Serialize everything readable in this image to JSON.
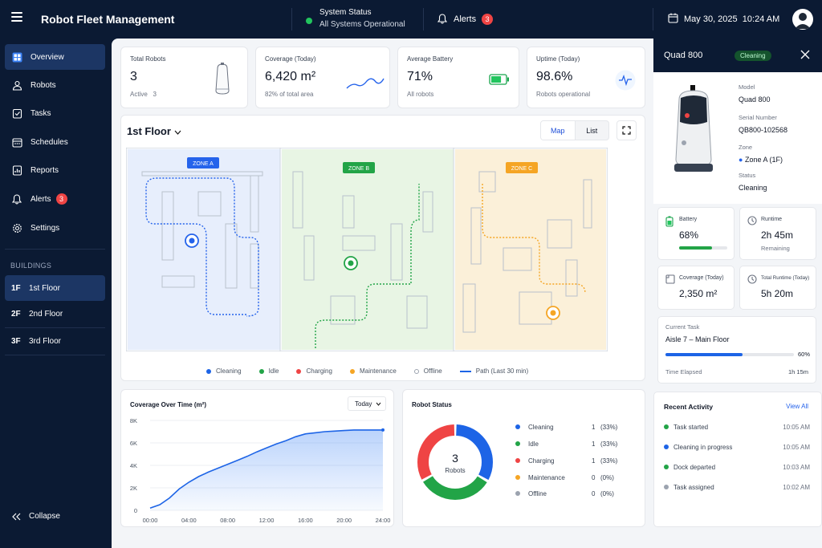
{
  "app": {
    "title": "Robot Fleet Management"
  },
  "header": {
    "system_status_label": "System Status",
    "system_status_value": "All Systems Operational",
    "alerts_label": "Alerts",
    "alerts_count": "3",
    "date": "May 30, 2025",
    "time": "10:24 AM"
  },
  "sidebar": {
    "items": [
      {
        "label": "Overview",
        "icon": "overview-icon"
      },
      {
        "label": "Robots",
        "icon": "robot-icon"
      },
      {
        "label": "Tasks",
        "icon": "tasks-icon"
      },
      {
        "label": "Schedules",
        "icon": "calendar-icon"
      },
      {
        "label": "Reports",
        "icon": "reports-icon"
      },
      {
        "label": "Alerts",
        "icon": "bell-icon",
        "badge": "3"
      },
      {
        "label": "Settings",
        "icon": "gear-icon"
      }
    ],
    "buildings_label": "BUILDINGS",
    "floors": [
      {
        "code": "1F",
        "label": "1st Floor"
      },
      {
        "code": "2F",
        "label": "2nd Floor"
      },
      {
        "code": "3F",
        "label": "3rd Floor"
      }
    ],
    "collapse_label": "Collapse"
  },
  "stats": {
    "total_robots": {
      "title": "Total Robots",
      "value": "3",
      "sub": "Active   3"
    },
    "coverage": {
      "title": "Coverage (Today)",
      "value": "6,420 m²",
      "sub": "82% of total area"
    },
    "battery": {
      "title": "Average Battery",
      "value": "71%",
      "sub": "All robots",
      "level": 0.71
    },
    "uptime": {
      "title": "Uptime (Today)",
      "value": "98.6%",
      "sub": "Robots operational"
    }
  },
  "map": {
    "floor": "1st Floor",
    "view_map": "Map",
    "view_list": "List",
    "zones": [
      {
        "label": "ZONE A"
      },
      {
        "label": "ZONE B"
      },
      {
        "label": "ZONE C"
      }
    ],
    "legend": [
      {
        "label": "Cleaning",
        "color": "#1d64e6"
      },
      {
        "label": "Idle",
        "color": "#22a447"
      },
      {
        "label": "Charging",
        "color": "#ef4444"
      },
      {
        "label": "Maintenance",
        "color": "#f5a524"
      },
      {
        "label": "Offline",
        "color": "#9ca3af"
      },
      {
        "label": "Path (Last 30 min)",
        "color": "#1d64e6"
      }
    ]
  },
  "coverage_chart": {
    "title": "Coverage Over Time (m²)",
    "range": "Today"
  },
  "robot_status": {
    "title": "Robot Status",
    "total": "3",
    "total_label": "Robots",
    "rows": [
      {
        "name": "Cleaning",
        "count": "1",
        "pct": "(33%)",
        "color": "#1d64e6"
      },
      {
        "name": "Idle",
        "count": "1",
        "pct": "(33%)",
        "color": "#22a447"
      },
      {
        "name": "Charging",
        "count": "1",
        "pct": "(33%)",
        "color": "#ef4444"
      },
      {
        "name": "Maintenance",
        "count": "0",
        "pct": "(0%)",
        "color": "#f5a524"
      },
      {
        "name": "Offline",
        "count": "0",
        "pct": "(0%)",
        "color": "#9ca3af"
      }
    ]
  },
  "chart_data": {
    "type": "area",
    "x": [
      "00:00",
      "01:00",
      "02:00",
      "03:00",
      "04:00",
      "05:00",
      "06:00",
      "07:00",
      "08:00",
      "09:00",
      "10:00",
      "11:00",
      "12:00",
      "13:00",
      "14:00",
      "15:00",
      "16:00",
      "17:00",
      "18:00",
      "19:00",
      "20:00",
      "21:00",
      "22:00",
      "23:00",
      "24:00"
    ],
    "values": [
      200,
      500,
      1100,
      1900,
      2500,
      3000,
      3400,
      3750,
      4100,
      4450,
      4800,
      5200,
      5550,
      5900,
      6200,
      6550,
      6800,
      6900,
      7000,
      7050,
      7100,
      7150,
      7150,
      7150,
      7150
    ],
    "xticks": [
      "00:00",
      "04:00",
      "08:00",
      "12:00",
      "16:00",
      "20:00",
      "24:00"
    ],
    "yticks": [
      "0",
      "2K",
      "4K",
      "6K",
      "8K"
    ],
    "ylim": [
      0,
      8000
    ],
    "title": "Coverage Over Time (m²)",
    "grid": true,
    "color": "#1d64e6"
  },
  "robot_panel": {
    "name": "Quad 800",
    "status": "Cleaning",
    "model_label": "Model",
    "model": "Quad 800",
    "serial_label": "Serial Number",
    "serial": "QB800-102568",
    "zone_label": "Zone",
    "zone": "Zone A (1F)",
    "status_label": "Status",
    "status_value": "Cleaning",
    "battery": {
      "title": "Battery",
      "value": "68%",
      "level": 0.68
    },
    "runtime": {
      "title": "Runtime",
      "value": "2h 45m",
      "sub": "Remaining"
    },
    "coverage": {
      "title": "Coverage (Today)",
      "value": "2,350 m²"
    },
    "total_runtime": {
      "title": "Total Runtime (Today)",
      "value": "5h 20m"
    },
    "task": {
      "label": "Current Task",
      "name": "Aisle 7 – Main Floor",
      "progress": 0.6,
      "progress_text": "60%",
      "elapsed_label": "Time Elapsed",
      "elapsed": "1h 15m"
    }
  },
  "activity": {
    "title": "Recent Activity",
    "view_all": "View All",
    "items": [
      {
        "text": "Task started",
        "time": "10:05 AM",
        "color": "#22a447"
      },
      {
        "text": "Cleaning in progress",
        "time": "10:05 AM",
        "color": "#1d64e6"
      },
      {
        "text": "Dock departed",
        "time": "10:03 AM",
        "color": "#22a447"
      },
      {
        "text": "Task assigned",
        "time": "10:02 AM",
        "color": "#9ca3af"
      }
    ]
  }
}
